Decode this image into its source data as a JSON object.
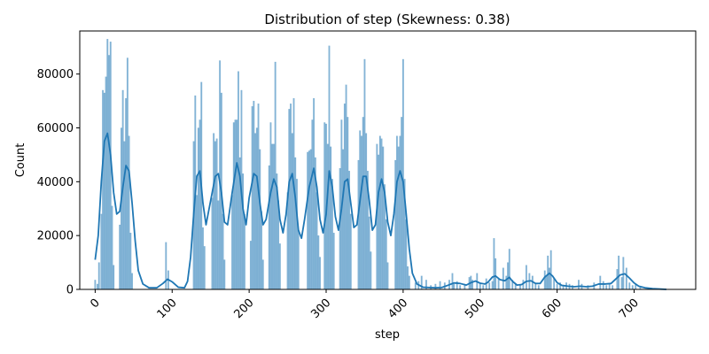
{
  "chart_data": {
    "type": "histogram",
    "title": "Distribution of step (Skewness: 0.38)",
    "xlabel": "step",
    "ylabel": "Count",
    "xlim": [
      -20,
      780
    ],
    "ylim": [
      0,
      96000
    ],
    "xticks": [
      0,
      100,
      200,
      300,
      400,
      500,
      600,
      700
    ],
    "yticks": [
      0,
      20000,
      40000,
      60000,
      80000
    ],
    "grid": false,
    "bar_color": "#1f77b4",
    "kde_color": "#1f77b4",
    "bins": [
      [
        0,
        3500
      ],
      [
        3,
        2000
      ],
      [
        5,
        10000
      ],
      [
        8,
        28000
      ],
      [
        10,
        74000
      ],
      [
        12,
        73000
      ],
      [
        14,
        79000
      ],
      [
        16,
        93000
      ],
      [
        18,
        87000
      ],
      [
        20,
        92000
      ],
      [
        22,
        31000
      ],
      [
        24,
        9000
      ],
      [
        32,
        24000
      ],
      [
        34,
        60000
      ],
      [
        36,
        74000
      ],
      [
        38,
        55000
      ],
      [
        40,
        71000
      ],
      [
        42,
        86000
      ],
      [
        44,
        57000
      ],
      [
        46,
        21000
      ],
      [
        48,
        6000
      ],
      [
        92,
        17500
      ],
      [
        95,
        7000
      ],
      [
        128,
        55000
      ],
      [
        130,
        72000
      ],
      [
        132,
        35000
      ],
      [
        134,
        60000
      ],
      [
        136,
        63000
      ],
      [
        138,
        77000
      ],
      [
        140,
        23000
      ],
      [
        142,
        16000
      ],
      [
        152,
        34000
      ],
      [
        154,
        58000
      ],
      [
        156,
        55000
      ],
      [
        158,
        56000
      ],
      [
        160,
        33000
      ],
      [
        162,
        85000
      ],
      [
        164,
        73000
      ],
      [
        166,
        28000
      ],
      [
        168,
        11000
      ],
      [
        178,
        35000
      ],
      [
        180,
        62000
      ],
      [
        182,
        63000
      ],
      [
        184,
        63000
      ],
      [
        186,
        81000
      ],
      [
        188,
        49000
      ],
      [
        190,
        74000
      ],
      [
        192,
        43000
      ],
      [
        194,
        28000
      ],
      [
        202,
        18000
      ],
      [
        204,
        68000
      ],
      [
        206,
        70000
      ],
      [
        208,
        58000
      ],
      [
        210,
        60000
      ],
      [
        212,
        69000
      ],
      [
        214,
        52000
      ],
      [
        216,
        29000
      ],
      [
        218,
        11000
      ],
      [
        226,
        46000
      ],
      [
        228,
        62000
      ],
      [
        230,
        54000
      ],
      [
        232,
        54000
      ],
      [
        234,
        84500
      ],
      [
        236,
        43000
      ],
      [
        238,
        33000
      ],
      [
        240,
        17000
      ],
      [
        250,
        36000
      ],
      [
        252,
        67000
      ],
      [
        254,
        69000
      ],
      [
        256,
        58000
      ],
      [
        258,
        71000
      ],
      [
        260,
        49000
      ],
      [
        262,
        41000
      ],
      [
        264,
        22000
      ],
      [
        276,
        51000
      ],
      [
        278,
        51500
      ],
      [
        280,
        52000
      ],
      [
        282,
        63000
      ],
      [
        284,
        71000
      ],
      [
        286,
        49000
      ],
      [
        288,
        36000
      ],
      [
        290,
        20000
      ],
      [
        292,
        12000
      ],
      [
        298,
        62000
      ],
      [
        300,
        61500
      ],
      [
        302,
        54000
      ],
      [
        304,
        90500
      ],
      [
        306,
        53000
      ],
      [
        308,
        41000
      ],
      [
        310,
        21000
      ],
      [
        318,
        45000
      ],
      [
        320,
        63000
      ],
      [
        322,
        52000
      ],
      [
        324,
        69000
      ],
      [
        326,
        76000
      ],
      [
        328,
        64000
      ],
      [
        330,
        44000
      ],
      [
        332,
        28000
      ],
      [
        342,
        48000
      ],
      [
        344,
        59000
      ],
      [
        346,
        57000
      ],
      [
        348,
        64000
      ],
      [
        350,
        85500
      ],
      [
        352,
        58000
      ],
      [
        354,
        44000
      ],
      [
        356,
        27000
      ],
      [
        358,
        14000
      ],
      [
        366,
        54000
      ],
      [
        368,
        50000
      ],
      [
        370,
        57000
      ],
      [
        372,
        56000
      ],
      [
        374,
        53000
      ],
      [
        376,
        39000
      ],
      [
        378,
        26000
      ],
      [
        380,
        10000
      ],
      [
        390,
        48000
      ],
      [
        392,
        57000
      ],
      [
        394,
        53000
      ],
      [
        396,
        57000
      ],
      [
        398,
        64000
      ],
      [
        400,
        85500
      ],
      [
        402,
        41000
      ],
      [
        404,
        26000
      ],
      [
        406,
        8500
      ],
      [
        408,
        5000
      ],
      [
        416,
        2500
      ],
      [
        420,
        3000
      ],
      [
        424,
        5000
      ],
      [
        430,
        3500
      ],
      [
        436,
        1500
      ],
      [
        442,
        2000
      ],
      [
        448,
        3000
      ],
      [
        454,
        2500
      ],
      [
        460,
        3500
      ],
      [
        464,
        6000
      ],
      [
        466,
        2000
      ],
      [
        470,
        3000
      ],
      [
        474,
        1500
      ],
      [
        480,
        2000
      ],
      [
        486,
        4500
      ],
      [
        488,
        5000
      ],
      [
        490,
        3500
      ],
      [
        496,
        6000
      ],
      [
        500,
        2000
      ],
      [
        504,
        1500
      ],
      [
        508,
        4000
      ],
      [
        512,
        2500
      ],
      [
        516,
        3000
      ],
      [
        518,
        19000
      ],
      [
        520,
        11500
      ],
      [
        524,
        4000
      ],
      [
        530,
        8000
      ],
      [
        534,
        5000
      ],
      [
        536,
        10000
      ],
      [
        538,
        15000
      ],
      [
        542,
        3500
      ],
      [
        546,
        2000
      ],
      [
        552,
        1500
      ],
      [
        556,
        3500
      ],
      [
        560,
        9000
      ],
      [
        564,
        6000
      ],
      [
        568,
        5000
      ],
      [
        572,
        2000
      ],
      [
        576,
        1500
      ],
      [
        584,
        7000
      ],
      [
        586,
        5000
      ],
      [
        588,
        12500
      ],
      [
        590,
        8000
      ],
      [
        592,
        14500
      ],
      [
        596,
        4000
      ],
      [
        600,
        2000
      ],
      [
        604,
        2500
      ],
      [
        608,
        1500
      ],
      [
        612,
        2500
      ],
      [
        616,
        2000
      ],
      [
        620,
        1500
      ],
      [
        628,
        3500
      ],
      [
        632,
        2000
      ],
      [
        640,
        1500
      ],
      [
        648,
        2500
      ],
      [
        656,
        5000
      ],
      [
        660,
        3000
      ],
      [
        664,
        1500
      ],
      [
        668,
        2000
      ],
      [
        672,
        1500
      ],
      [
        678,
        7500
      ],
      [
        680,
        12500
      ],
      [
        684,
        4500
      ],
      [
        686,
        12000
      ],
      [
        690,
        8000
      ],
      [
        694,
        2500
      ],
      [
        698,
        1500
      ],
      [
        702,
        2000
      ],
      [
        708,
        1000
      ]
    ],
    "kde": [
      [
        0,
        11000
      ],
      [
        4,
        20000
      ],
      [
        8,
        40000
      ],
      [
        12,
        55000
      ],
      [
        16,
        58000
      ],
      [
        20,
        50000
      ],
      [
        24,
        36000
      ],
      [
        28,
        28000
      ],
      [
        32,
        29000
      ],
      [
        36,
        38000
      ],
      [
        40,
        46000
      ],
      [
        44,
        44000
      ],
      [
        48,
        32000
      ],
      [
        52,
        18000
      ],
      [
        56,
        7000
      ],
      [
        62,
        2000
      ],
      [
        70,
        600
      ],
      [
        80,
        600
      ],
      [
        88,
        2200
      ],
      [
        94,
        3800
      ],
      [
        100,
        2800
      ],
      [
        108,
        800
      ],
      [
        116,
        600
      ],
      [
        120,
        3000
      ],
      [
        124,
        12000
      ],
      [
        128,
        28000
      ],
      [
        132,
        42000
      ],
      [
        136,
        44000
      ],
      [
        140,
        32000
      ],
      [
        144,
        24000
      ],
      [
        150,
        33000
      ],
      [
        156,
        42000
      ],
      [
        160,
        43000
      ],
      [
        164,
        36000
      ],
      [
        168,
        25000
      ],
      [
        172,
        24000
      ],
      [
        178,
        36000
      ],
      [
        184,
        47000
      ],
      [
        188,
        42000
      ],
      [
        192,
        30000
      ],
      [
        196,
        24000
      ],
      [
        200,
        34000
      ],
      [
        206,
        43000
      ],
      [
        210,
        42000
      ],
      [
        214,
        32000
      ],
      [
        218,
        24000
      ],
      [
        222,
        26000
      ],
      [
        228,
        36000
      ],
      [
        232,
        41000
      ],
      [
        236,
        38000
      ],
      [
        240,
        26000
      ],
      [
        244,
        21000
      ],
      [
        248,
        28000
      ],
      [
        252,
        40000
      ],
      [
        256,
        43000
      ],
      [
        260,
        34000
      ],
      [
        264,
        22000
      ],
      [
        268,
        19000
      ],
      [
        272,
        26000
      ],
      [
        278,
        38000
      ],
      [
        284,
        45000
      ],
      [
        288,
        38000
      ],
      [
        292,
        26000
      ],
      [
        296,
        21000
      ],
      [
        300,
        28000
      ],
      [
        304,
        44000
      ],
      [
        308,
        38000
      ],
      [
        312,
        27000
      ],
      [
        316,
        22000
      ],
      [
        320,
        30000
      ],
      [
        324,
        40000
      ],
      [
        328,
        41000
      ],
      [
        332,
        32000
      ],
      [
        336,
        23000
      ],
      [
        340,
        24000
      ],
      [
        344,
        33000
      ],
      [
        348,
        42000
      ],
      [
        352,
        42000
      ],
      [
        356,
        33000
      ],
      [
        360,
        22000
      ],
      [
        364,
        24000
      ],
      [
        368,
        36000
      ],
      [
        372,
        41000
      ],
      [
        376,
        36000
      ],
      [
        380,
        25000
      ],
      [
        384,
        20000
      ],
      [
        388,
        28000
      ],
      [
        392,
        40000
      ],
      [
        396,
        44000
      ],
      [
        400,
        40000
      ],
      [
        404,
        28000
      ],
      [
        408,
        15000
      ],
      [
        412,
        6000
      ],
      [
        418,
        2000
      ],
      [
        426,
        800
      ],
      [
        434,
        700
      ],
      [
        442,
        600
      ],
      [
        450,
        700
      ],
      [
        458,
        1500
      ],
      [
        466,
        2400
      ],
      [
        474,
        2200
      ],
      [
        482,
        1600
      ],
      [
        488,
        2500
      ],
      [
        494,
        3100
      ],
      [
        500,
        2300
      ],
      [
        506,
        2000
      ],
      [
        510,
        2600
      ],
      [
        516,
        4600
      ],
      [
        520,
        5000
      ],
      [
        526,
        3600
      ],
      [
        532,
        3200
      ],
      [
        538,
        4500
      ],
      [
        542,
        3000
      ],
      [
        548,
        1600
      ],
      [
        554,
        1800
      ],
      [
        560,
        3000
      ],
      [
        566,
        3200
      ],
      [
        572,
        2200
      ],
      [
        578,
        2200
      ],
      [
        584,
        4600
      ],
      [
        590,
        6000
      ],
      [
        594,
        5000
      ],
      [
        600,
        2500
      ],
      [
        606,
        1500
      ],
      [
        614,
        1200
      ],
      [
        622,
        1000
      ],
      [
        630,
        1200
      ],
      [
        638,
        1000
      ],
      [
        646,
        1200
      ],
      [
        654,
        2000
      ],
      [
        662,
        2000
      ],
      [
        670,
        2200
      ],
      [
        676,
        3800
      ],
      [
        682,
        5400
      ],
      [
        688,
        5800
      ],
      [
        694,
        4200
      ],
      [
        700,
        2400
      ],
      [
        706,
        1200
      ],
      [
        714,
        600
      ],
      [
        724,
        300
      ],
      [
        735,
        100
      ],
      [
        742,
        0
      ]
    ]
  }
}
